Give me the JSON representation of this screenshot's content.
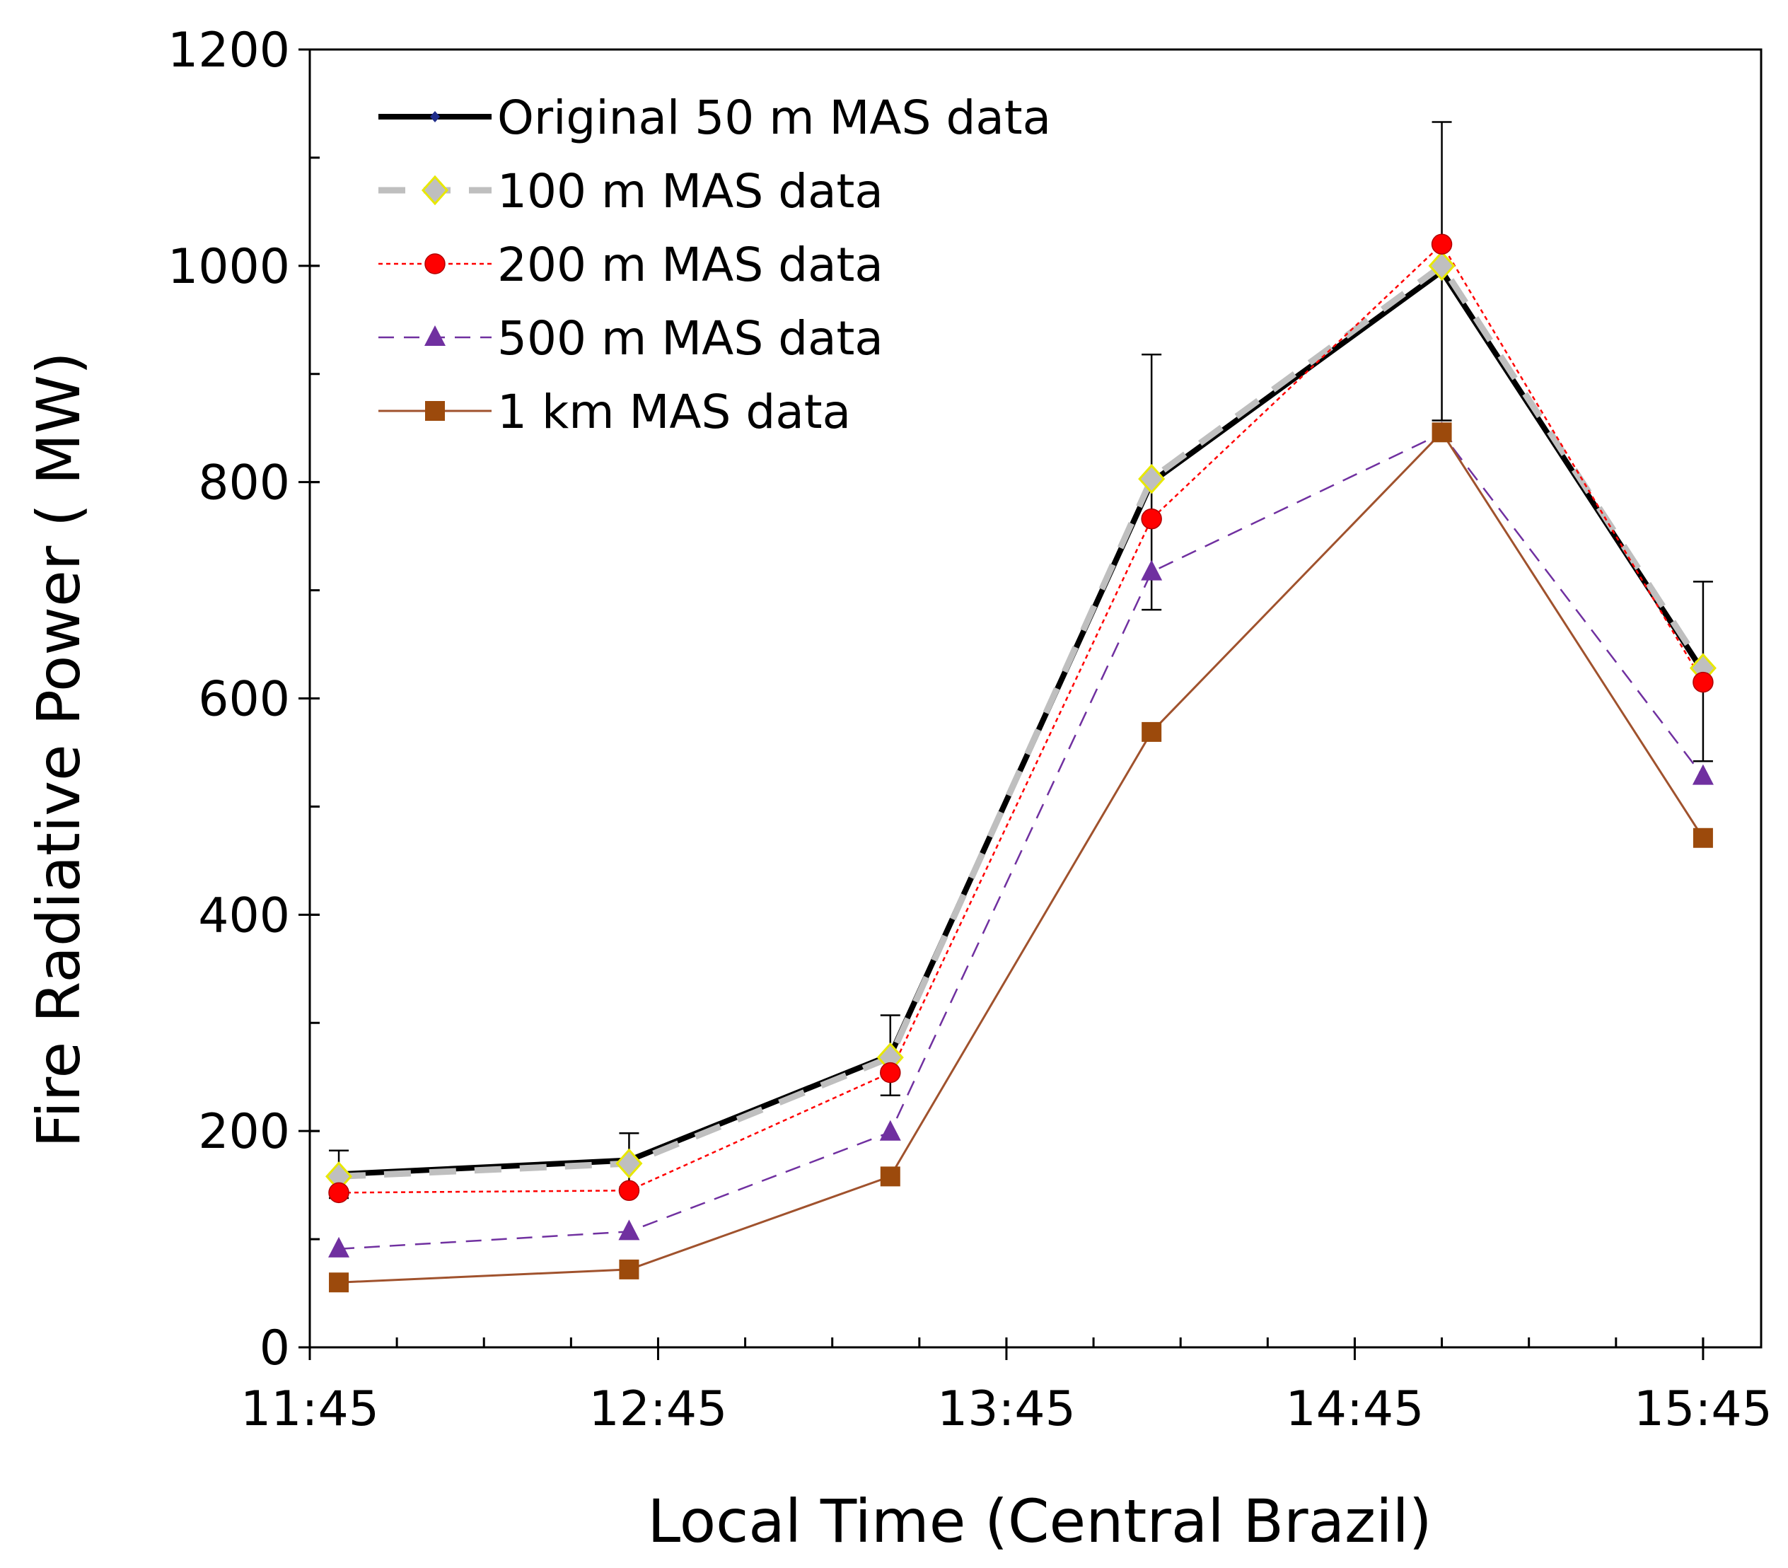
{
  "chart_data": {
    "type": "line",
    "title": "",
    "xlabel": "Local Time (Central Brazil)",
    "ylabel": "Fire Radiative Power ( MW)",
    "x_unit": "minutes after 11:45",
    "xlim": [
      0,
      250
    ],
    "ylim": [
      0,
      1200
    ],
    "y_major_step": 200,
    "y_minor_step": 100,
    "x_minor_step": 15,
    "x_ticks": [
      {
        "x": 0,
        "label": "11:45"
      },
      {
        "x": 60,
        "label": "12:45"
      },
      {
        "x": 120,
        "label": "13:45"
      },
      {
        "x": 180,
        "label": "14:45"
      },
      {
        "x": 240,
        "label": "15:45"
      }
    ],
    "y_ticks": [
      {
        "y": 0,
        "label": "0"
      },
      {
        "y": 200,
        "label": "200"
      },
      {
        "y": 400,
        "label": "400"
      },
      {
        "y": 600,
        "label": "600"
      },
      {
        "y": 800,
        "label": "800"
      },
      {
        "y": 1000,
        "label": "1000"
      },
      {
        "y": 1200,
        "label": "1200"
      }
    ],
    "x": [
      5,
      55,
      100,
      145,
      195,
      240
    ],
    "legend_position": "top-left",
    "series": [
      {
        "name": "Original 50 m MAS data",
        "values": [
          160,
          173,
          270,
          800,
          995,
          625
        ],
        "color": "#000000",
        "dash": "",
        "width": 8,
        "marker": "smalldiamond",
        "marker_color": "#1f2d8a",
        "error_bars": [
          22,
          25,
          37,
          118,
          138,
          83
        ]
      },
      {
        "name": "100 m MAS data",
        "values": [
          158,
          170,
          268,
          803,
          1000,
          628
        ],
        "color": "#bfbfbf",
        "dash": "38 26",
        "width": 9,
        "marker": "diamond",
        "marker_color": "#bfbfbf",
        "marker_edge": "#e8e800"
      },
      {
        "name": "200 m MAS data",
        "values": [
          143,
          145,
          254,
          766,
          1020,
          615
        ],
        "color": "#ff0000",
        "dash": "6 5",
        "width": 2.5,
        "marker": "circle",
        "marker_color": "#ff0000"
      },
      {
        "name": "500 m MAS data",
        "values": [
          91,
          107,
          199,
          717,
          845,
          528
        ],
        "color": "#7030a0",
        "dash": "22 14",
        "width": 2.5,
        "marker": "triangle",
        "marker_color": "#7030a0"
      },
      {
        "name": "1 km MAS data",
        "values": [
          60,
          72,
          158,
          569,
          846,
          471
        ],
        "color": "#a0522d",
        "dash": "",
        "width": 3,
        "marker": "square",
        "marker_color": "#9c4a0c"
      }
    ]
  }
}
